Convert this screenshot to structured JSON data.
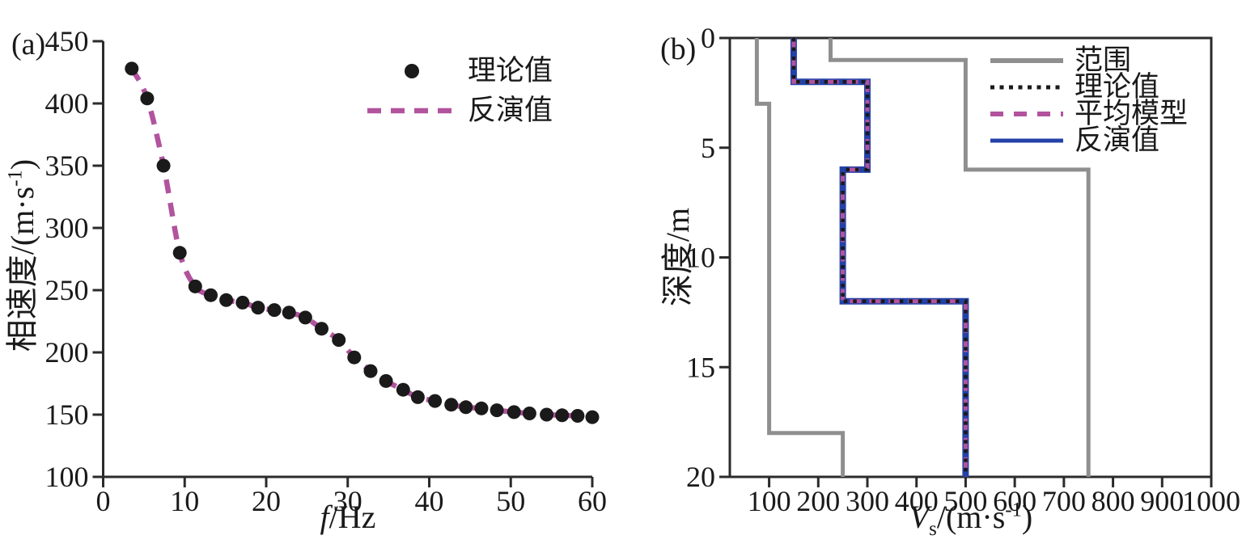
{
  "panels": {
    "a": {
      "label": "(a)",
      "x_axis": {
        "title_italic": "f",
        "title_rest": "/Hz",
        "ticks": [
          0,
          10,
          20,
          30,
          40,
          50,
          60
        ]
      },
      "y_axis": {
        "title_prefix": "相速度/(m·s",
        "title_sup": "-1",
        "title_suffix": ")",
        "ticks": [
          100,
          150,
          200,
          250,
          300,
          350,
          400,
          450
        ]
      },
      "legend": [
        {
          "label": "理论值",
          "sample": {
            "kind": "dot",
            "color_key": "black"
          }
        },
        {
          "label": "反演值",
          "sample": {
            "kind": "line",
            "color_key": "magenta",
            "dash": "17 12",
            "width": 6.5
          }
        }
      ]
    },
    "b": {
      "label": "(b)",
      "x_axis": {
        "title_italic": "V",
        "title_sub": "s",
        "title_mid": "/(m·s",
        "title_sup": "-1",
        "title_suffix": ")",
        "ticks": [
          100,
          200,
          300,
          400,
          500,
          600,
          700,
          800,
          900,
          1000
        ]
      },
      "y_axis": {
        "title": "深度/m",
        "ticks": [
          0,
          5,
          10,
          15,
          20
        ]
      },
      "legend": [
        {
          "label": "范围",
          "sample": {
            "kind": "line",
            "color_key": "gray",
            "dash": "",
            "width": 6
          }
        },
        {
          "label": "理论值",
          "sample": {
            "kind": "line",
            "color_key": "black",
            "dash": "5 6.5",
            "width": 5
          }
        },
        {
          "label": "平均模型",
          "sample": {
            "kind": "line",
            "color_key": "magenta",
            "dash": "16 13",
            "width": 6
          }
        },
        {
          "label": "反演值",
          "sample": {
            "kind": "line",
            "color_key": "blue",
            "dash": "",
            "width": 5
          }
        }
      ]
    }
  },
  "colors": {
    "black": "#1a1a1a",
    "magenta": "#b2539e",
    "blue": "#2342a8",
    "gray": "#8f8f8f",
    "axis": "#2b2b2b"
  },
  "chart_data": [
    {
      "type": "scatter",
      "panel": "a",
      "title": "",
      "xlabel": "f/Hz",
      "ylabel": "相速度/(m·s⁻¹)",
      "xlim": [
        0,
        60
      ],
      "ylim": [
        100,
        450
      ],
      "xticks": [
        0,
        10,
        20,
        30,
        40,
        50,
        60
      ],
      "yticks": [
        100,
        150,
        200,
        250,
        300,
        350,
        400,
        450
      ],
      "grid": false,
      "legend_position": "upper-right-inside",
      "frequencies_hz": [
        3.5,
        5.4,
        7.4,
        9.4,
        11.3,
        13.2,
        15.1,
        17.1,
        19.0,
        21.0,
        22.8,
        24.8,
        26.8,
        28.9,
        30.8,
        32.8,
        34.7,
        36.8,
        38.6,
        40.7,
        42.7,
        44.5,
        46.4,
        48.3,
        50.4,
        52.3,
        54.4,
        56.3,
        58.2,
        60.0
      ],
      "phase_velocity_ms": [
        428,
        404,
        350,
        280,
        253,
        246,
        242,
        240,
        236,
        234,
        232,
        228,
        219,
        210,
        196,
        185,
        177,
        170,
        164,
        161,
        158,
        156,
        155,
        153.5,
        152,
        151,
        150,
        149.5,
        149,
        148
      ],
      "series": [
        {
          "name": "理论值",
          "style": "black-dots",
          "uses": "frequencies_hz/phase_velocity_ms"
        },
        {
          "name": "反演值",
          "style": "magenta-dashed-line",
          "uses": "frequencies_hz/phase_velocity_ms"
        }
      ]
    },
    {
      "type": "line",
      "panel": "b",
      "title": "",
      "xlabel": "Vs/(m·s⁻¹)",
      "ylabel": "深度/m",
      "xlim": [
        20,
        1000
      ],
      "ylim": [
        0,
        20
      ],
      "y_inverted": true,
      "xticks": [
        100,
        200,
        300,
        400,
        500,
        600,
        700,
        800,
        900,
        1000
      ],
      "yticks": [
        0,
        5,
        10,
        15,
        20
      ],
      "grid": false,
      "legend_position": "upper-right-inside",
      "range_lower_vs_depth": [
        [
          75,
          0
        ],
        [
          75,
          3
        ],
        [
          100,
          3
        ],
        [
          100,
          18
        ],
        [
          250,
          18
        ],
        [
          250,
          20
        ]
      ],
      "range_upper_vs_depth": [
        [
          225,
          0
        ],
        [
          225,
          1
        ],
        [
          500,
          1
        ],
        [
          500,
          6
        ],
        [
          750,
          6
        ],
        [
          750,
          20
        ]
      ],
      "model_profile_vs_depth": [
        [
          150,
          0
        ],
        [
          150,
          2
        ],
        [
          300,
          2
        ],
        [
          300,
          6
        ],
        [
          250,
          6
        ],
        [
          250,
          12
        ],
        [
          500,
          12
        ],
        [
          500,
          20
        ]
      ],
      "model_layers": [
        {
          "vs_ms": 150,
          "depth_top_m": 0,
          "depth_bottom_m": 2
        },
        {
          "vs_ms": 300,
          "depth_top_m": 2,
          "depth_bottom_m": 6
        },
        {
          "vs_ms": 250,
          "depth_top_m": 6,
          "depth_bottom_m": 12
        },
        {
          "vs_ms": 500,
          "depth_top_m": 12,
          "depth_bottom_m": 20
        }
      ],
      "series": [
        {
          "name": "范围",
          "role": "search-range",
          "style": "solid",
          "color_key": "gray",
          "width": 5,
          "uses": "range_lower_vs_depth,range_upper_vs_depth"
        },
        {
          "name": "反演值",
          "role": "inversion",
          "style": "solid",
          "color_key": "blue",
          "width": 8,
          "uses": "model_profile_vs_depth"
        },
        {
          "name": "平均模型",
          "role": "average-model",
          "style": "dashed",
          "dash": "14 10",
          "color_key": "magenta",
          "width": 5,
          "uses": "model_profile_vs_depth"
        },
        {
          "name": "理论值",
          "role": "theoretical",
          "style": "dotted",
          "dash": "4.5 7",
          "color_key": "black",
          "width": 4.5,
          "uses": "model_profile_vs_depth"
        }
      ]
    }
  ]
}
